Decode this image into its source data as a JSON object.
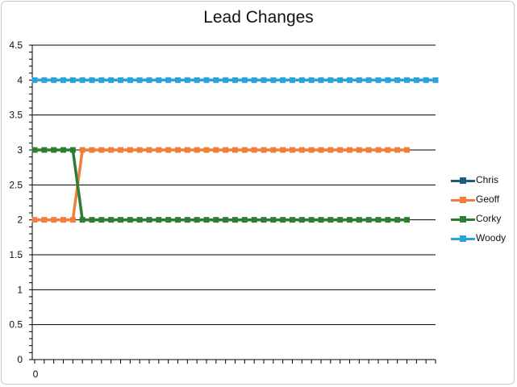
{
  "chart_data": {
    "type": "line",
    "title": "Lead Changes",
    "xlabel": "",
    "ylabel": "",
    "ylim": [
      0,
      4.5
    ],
    "y_ticks": [
      "0",
      "0.5",
      "1",
      "1.5",
      "2",
      "2.5",
      "3",
      "3.5",
      "4",
      "4.5"
    ],
    "x_tick_label": "0",
    "x_count": 43,
    "grid": true,
    "legend_position": "right",
    "series": [
      {
        "name": "Chris",
        "color": "#1f5c7a",
        "values": []
      },
      {
        "name": "Geoff",
        "color": "#f07f3c",
        "values": [
          2,
          2,
          2,
          2,
          2,
          3,
          3,
          3,
          3,
          3,
          3,
          3,
          3,
          3,
          3,
          3,
          3,
          3,
          3,
          3,
          3,
          3,
          3,
          3,
          3,
          3,
          3,
          3,
          3,
          3,
          3,
          3,
          3,
          3,
          3,
          3,
          3,
          3,
          3,
          3
        ]
      },
      {
        "name": "Corky",
        "color": "#2e7d32",
        "values": [
          3,
          3,
          3,
          3,
          3,
          2,
          2,
          2,
          2,
          2,
          2,
          2,
          2,
          2,
          2,
          2,
          2,
          2,
          2,
          2,
          2,
          2,
          2,
          2,
          2,
          2,
          2,
          2,
          2,
          2,
          2,
          2,
          2,
          2,
          2,
          2,
          2,
          2,
          2,
          2
        ]
      },
      {
        "name": "Woody",
        "color": "#29a3d9",
        "values": [
          4,
          4,
          4,
          4,
          4,
          4,
          4,
          4,
          4,
          4,
          4,
          4,
          4,
          4,
          4,
          4,
          4,
          4,
          4,
          4,
          4,
          4,
          4,
          4,
          4,
          4,
          4,
          4,
          4,
          4,
          4,
          4,
          4,
          4,
          4,
          4,
          4,
          4,
          4,
          4,
          4,
          4,
          4
        ]
      }
    ]
  }
}
